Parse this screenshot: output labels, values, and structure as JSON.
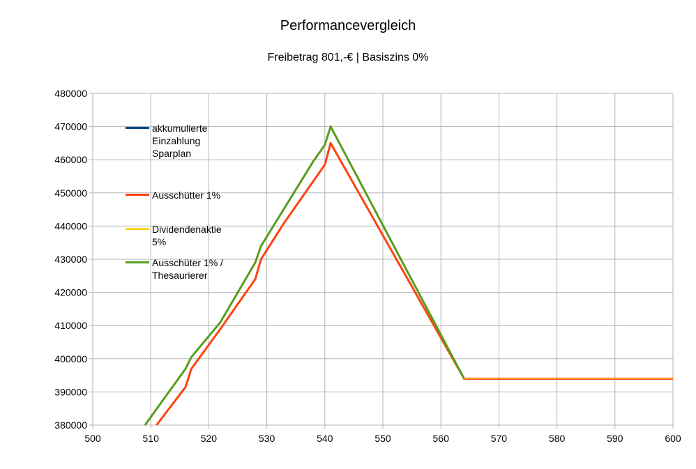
{
  "chart_data": {
    "type": "line",
    "title": "Performancevergleich",
    "subtitle": "Freibetrag 801,-€ | Basiszins 0%",
    "xlabel": "",
    "ylabel": "",
    "xlim": [
      500,
      600
    ],
    "ylim": [
      380000,
      480000
    ],
    "x_ticks": [
      500,
      510,
      520,
      530,
      540,
      550,
      560,
      570,
      580,
      590,
      600
    ],
    "y_ticks": [
      380000,
      390000,
      400000,
      410000,
      420000,
      430000,
      440000,
      450000,
      460000,
      470000,
      480000
    ],
    "x_tick_labels": [
      "500",
      "510",
      "520",
      "530",
      "540",
      "550",
      "560",
      "570",
      "580",
      "590",
      "600"
    ],
    "y_tick_labels": [
      "380000",
      "390000",
      "400000",
      "410000",
      "420000",
      "430000",
      "440000",
      "450000",
      "460000",
      "470000",
      "480000"
    ],
    "grid": true,
    "legend_position": "top-left",
    "series": [
      {
        "name": "akkumulierte Einzahlung Sparplan",
        "color": "#004586",
        "width": 2,
        "points": [
          [
            509,
            380000
          ],
          [
            516,
            397000
          ],
          [
            517,
            400500
          ],
          [
            522,
            411000
          ],
          [
            528,
            429000
          ],
          [
            529,
            434000
          ],
          [
            538,
            459500
          ],
          [
            540,
            464500
          ],
          [
            541,
            470000
          ],
          [
            564,
            394000
          ],
          [
            600,
            394000
          ]
        ]
      },
      {
        "name": "Ausschütter 1%",
        "color": "#ff420e",
        "width": 3,
        "points": [
          [
            511,
            380000
          ],
          [
            516,
            391500
          ],
          [
            517,
            397000
          ],
          [
            522,
            409000
          ],
          [
            528,
            424000
          ],
          [
            529,
            430000
          ],
          [
            533,
            441000
          ],
          [
            540,
            458500
          ],
          [
            541,
            465000
          ],
          [
            564,
            394000
          ],
          [
            600,
            394000
          ]
        ]
      },
      {
        "name": "Dividendenaktie 5%",
        "color": "#ffd320",
        "width": 1,
        "points": [
          [
            509,
            380000
          ],
          [
            516,
            397000
          ],
          [
            517,
            400500
          ],
          [
            522,
            411000
          ],
          [
            528,
            429000
          ],
          [
            529,
            434000
          ],
          [
            538,
            459500
          ],
          [
            540,
            464500
          ],
          [
            541,
            470000
          ],
          [
            564,
            394000
          ],
          [
            600,
            394000
          ]
        ]
      },
      {
        "name": "Ausschüter 1% / Thesaurierer",
        "color": "#579d1c",
        "width": 3,
        "points": [
          [
            509,
            380000
          ],
          [
            516,
            397000
          ],
          [
            517,
            400500
          ],
          [
            522,
            411000
          ],
          [
            528,
            429000
          ],
          [
            529,
            434000
          ],
          [
            538,
            459500
          ],
          [
            540,
            464500
          ],
          [
            541,
            470000
          ],
          [
            564,
            394000
          ]
        ]
      }
    ],
    "legend": [
      {
        "label_lines": [
          "akkumulierte",
          "Einzahlung",
          "Sparplan"
        ],
        "color": "#004586"
      },
      {
        "label_lines": [
          "Ausschütter 1%"
        ],
        "color": "#ff420e"
      },
      {
        "label_lines": [
          "Dividendenaktie 5%"
        ],
        "color": "#ffd320"
      },
      {
        "label_lines": [
          "Ausschüter 1% /",
          "Thesaurierer"
        ],
        "color": "#579d1c"
      }
    ]
  }
}
